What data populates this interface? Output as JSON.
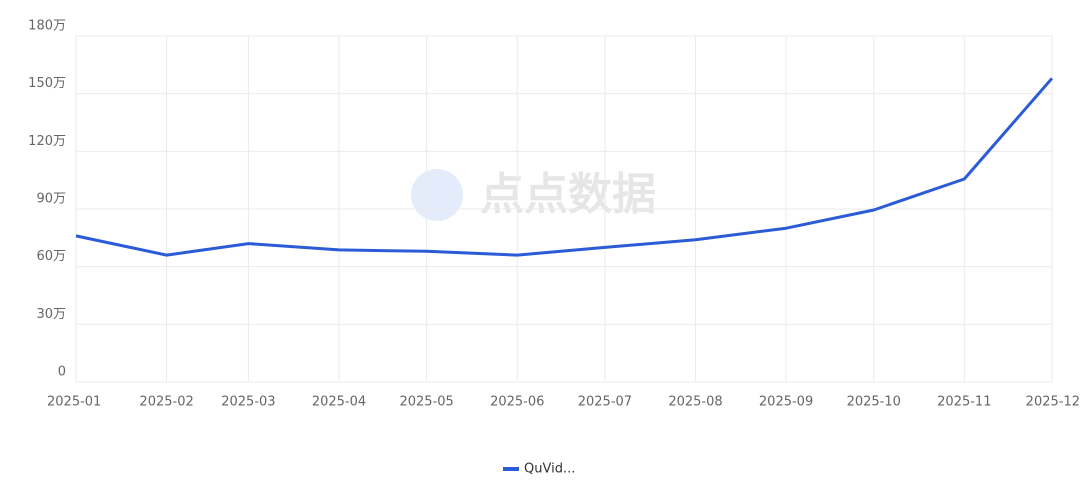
{
  "chart_data": {
    "type": "line",
    "watermark": "点点数据",
    "categories": [
      "2025-01",
      "2025-02",
      "2025-03",
      "2025-04",
      "2025-05",
      "2025-06",
      "2025-07",
      "2025-08",
      "2025-09",
      "2025-10",
      "2025-11",
      "2025-12"
    ],
    "series": [
      {
        "name": "QuVid...",
        "color": "#2b5bd7",
        "values": [
          76,
          66,
          72,
          68.7,
          68,
          66,
          70,
          74,
          80,
          89.5,
          105.6,
          158
        ]
      }
    ],
    "ylim": [
      0,
      180
    ],
    "yticks": [
      0,
      {
        "value": 30,
        "label": "30万"
      },
      {
        "value": 60,
        "label": "60万"
      },
      {
        "value": 90,
        "label": "90万"
      },
      {
        "value": 120,
        "label": "120万"
      },
      {
        "value": 150,
        "label": "150万"
      },
      {
        "value": 180,
        "label": "180万"
      }
    ],
    "grid": true
  }
}
